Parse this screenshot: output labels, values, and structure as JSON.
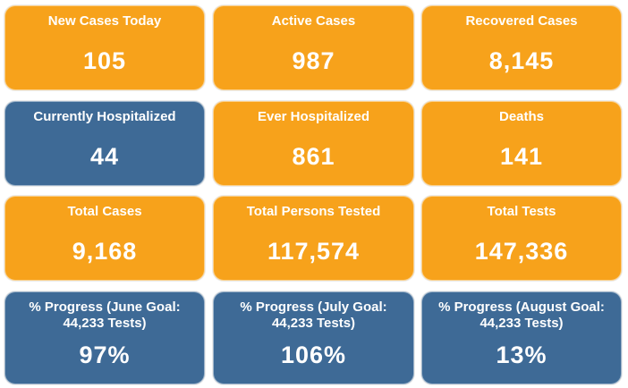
{
  "tiles": [
    {
      "label": "New Cases Today",
      "value": "105",
      "color": "#f7a21b"
    },
    {
      "label": "Active Cases",
      "value": "987",
      "color": "#f7a21b"
    },
    {
      "label": "Recovered Cases",
      "value": "8,145",
      "color": "#f7a21b"
    },
    {
      "label": "Currently Hospitalized",
      "value": "44",
      "color": "#3e6a96"
    },
    {
      "label": "Ever Hospitalized",
      "value": "861",
      "color": "#f7a21b"
    },
    {
      "label": "Deaths",
      "value": "141",
      "color": "#f7a21b"
    },
    {
      "label": "Total Cases",
      "value": "9,168",
      "color": "#f7a21b"
    },
    {
      "label": "Total Persons Tested",
      "value": "117,574",
      "color": "#f7a21b"
    },
    {
      "label": "Total Tests",
      "value": "147,336",
      "color": "#f7a21b"
    },
    {
      "label": "% Progress (June Goal: 44,233 Tests)",
      "value": "97%",
      "color": "#3e6a96"
    },
    {
      "label": "% Progress (July Goal: 44,233 Tests)",
      "value": "106%",
      "color": "#3e6a96"
    },
    {
      "label": "% Progress (August Goal: 44,233 Tests)",
      "value": "13%",
      "color": "#3e6a96"
    }
  ]
}
